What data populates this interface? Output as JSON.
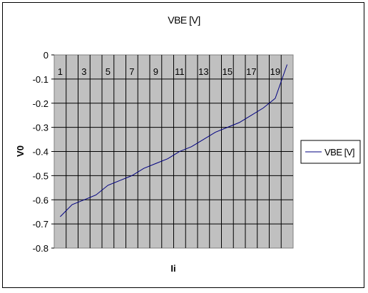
{
  "chart_data": {
    "type": "line",
    "title": "VBE [V]",
    "xlabel": "Ii",
    "ylabel": "V0",
    "categories": [
      1,
      2,
      3,
      4,
      5,
      6,
      7,
      8,
      9,
      10,
      11,
      12,
      13,
      14,
      15,
      16,
      17,
      18,
      19,
      20
    ],
    "x_tick_labels": [
      "1",
      "3",
      "5",
      "7",
      "9",
      "11",
      "13",
      "15",
      "17",
      "19"
    ],
    "series": [
      {
        "name": "VBE [V]",
        "color": "#000080",
        "values": [
          -0.67,
          -0.62,
          -0.6,
          -0.58,
          -0.54,
          -0.52,
          -0.5,
          -0.47,
          -0.45,
          -0.43,
          -0.4,
          -0.38,
          -0.35,
          -0.32,
          -0.3,
          -0.28,
          -0.25,
          -0.22,
          -0.18,
          -0.04
        ]
      }
    ],
    "y_ticks": [
      "0",
      "-0.1",
      "-0.2",
      "-0.3",
      "-0.4",
      "-0.5",
      "-0.6",
      "-0.7",
      "-0.8"
    ],
    "ylim": [
      -0.8,
      0
    ],
    "grid": true,
    "plot_background": "#c0c0c0",
    "legend_position": "right"
  }
}
